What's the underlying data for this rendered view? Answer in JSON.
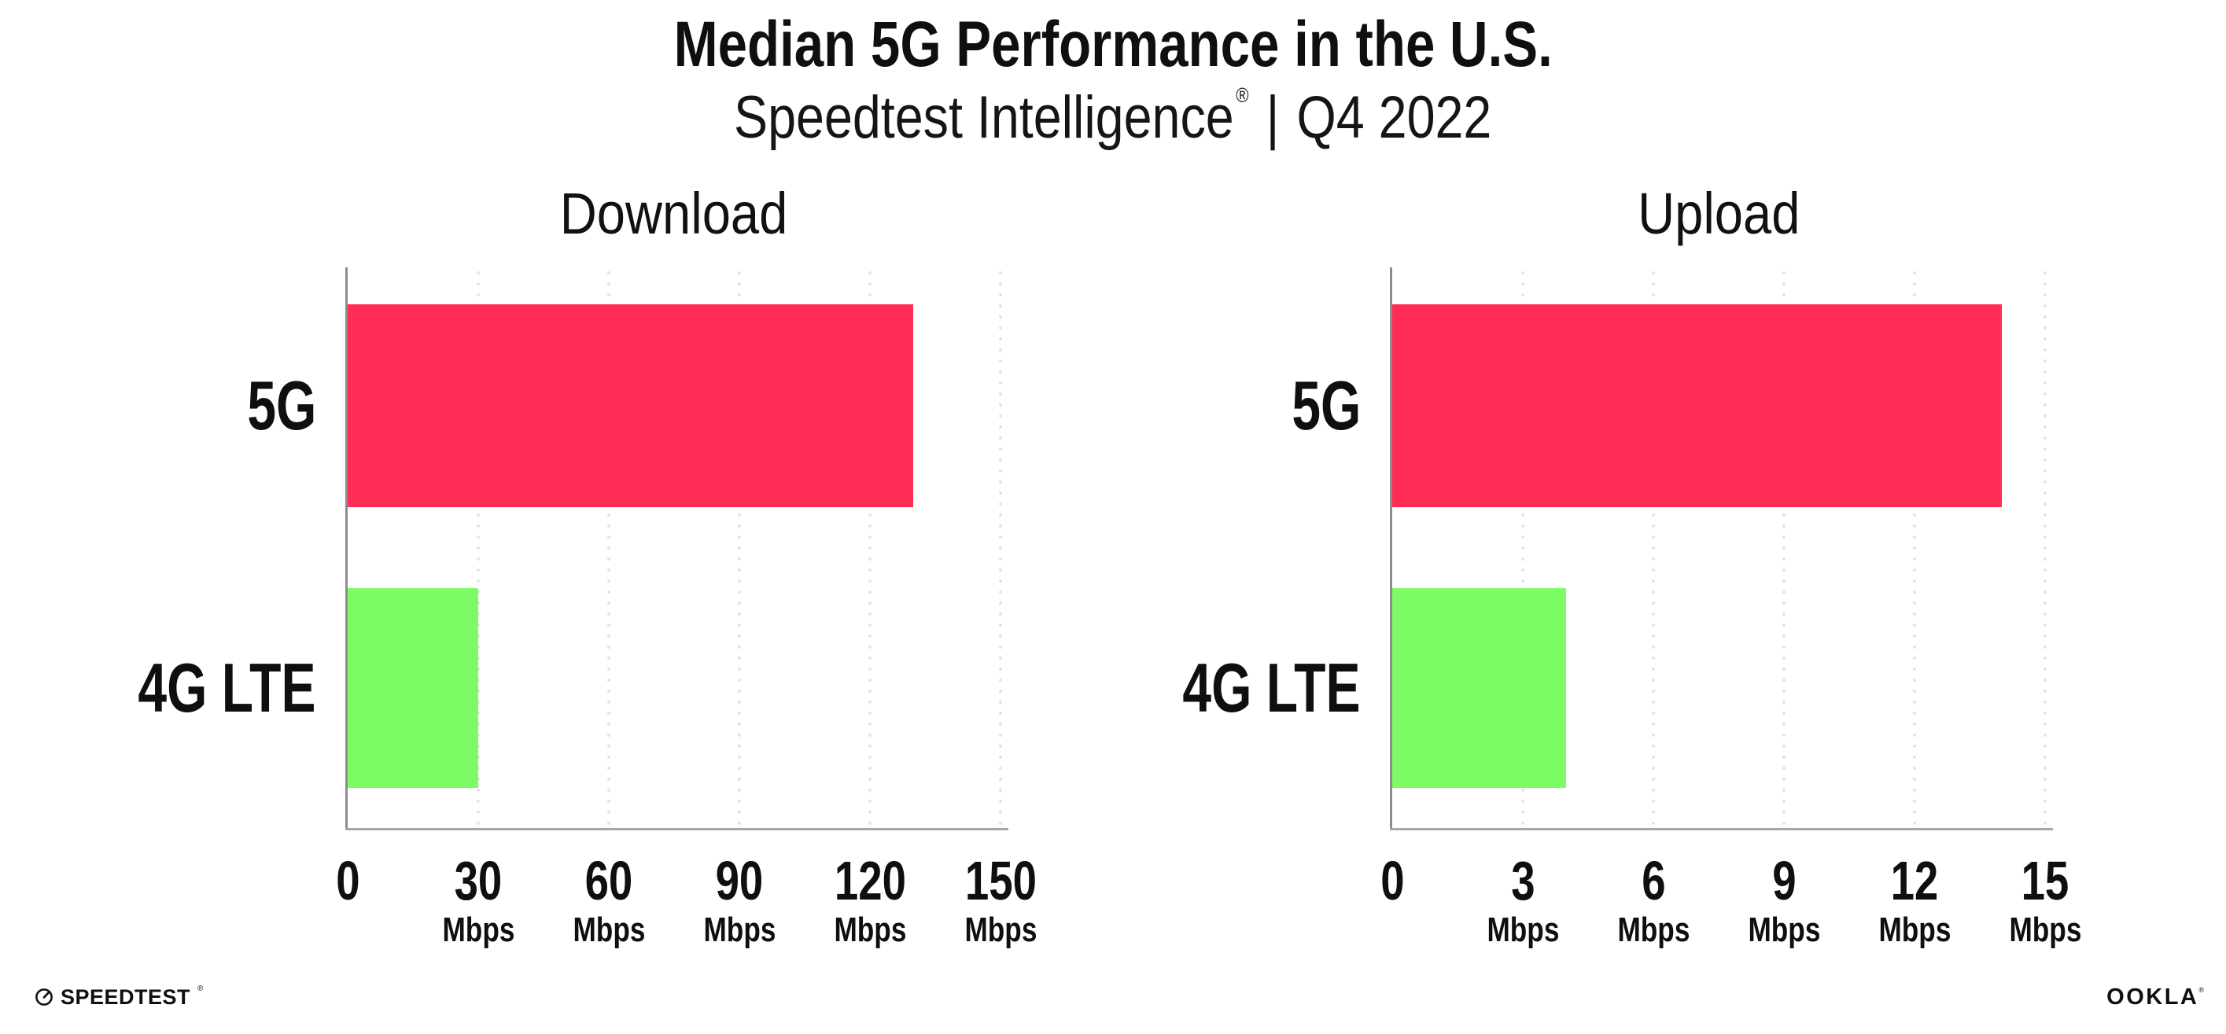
{
  "header": {
    "title": "Median 5G Performance in the U.S.",
    "subtitle_brand": "Speedtest Intelligence",
    "registered_mark": "®",
    "subtitle_divider": "|",
    "subtitle_period": "Q4 2022"
  },
  "chart_data": [
    {
      "type": "bar",
      "orientation": "horizontal",
      "title": "Download",
      "categories": [
        "5G",
        "4G LTE"
      ],
      "values": [
        130,
        30
      ],
      "unit": "Mbps",
      "xlim": [
        0,
        150
      ],
      "xticks": [
        0,
        30,
        60,
        90,
        120,
        150
      ],
      "grid": "vertical-dotted",
      "legend": "none"
    },
    {
      "type": "bar",
      "orientation": "horizontal",
      "title": "Upload",
      "categories": [
        "5G",
        "4G LTE"
      ],
      "values": [
        14,
        4
      ],
      "unit": "Mbps",
      "xlim": [
        0,
        15
      ],
      "xticks": [
        0,
        3,
        6,
        9,
        12,
        15
      ],
      "grid": "vertical-dotted",
      "legend": "none"
    }
  ],
  "colors": {
    "bar_5g": "#ff2d55",
    "bar_4g": "#7dfb64",
    "axis_x": "#a6a6a6",
    "axis_y": "#8c8c8c",
    "grid_dot": "#e2e2ec",
    "text": "#0f0f0f",
    "background": "#ffffff"
  },
  "footer": {
    "speedtest_label": "SPEEDTEST",
    "speedtest_mark": "®",
    "ookla_label": "OOKLA",
    "ookla_mark": "®"
  }
}
